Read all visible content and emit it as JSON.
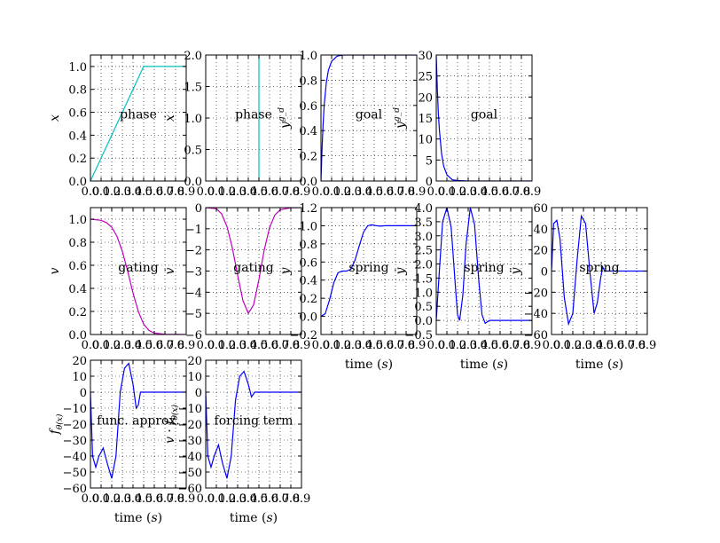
{
  "figure": {
    "width": 812,
    "height": 612
  },
  "chart_data": [
    {
      "id": "phase_x",
      "type": "line",
      "color": "#00bfbf",
      "xlim": [
        0,
        0.9
      ],
      "ylim": [
        0,
        1.1
      ],
      "x_ticks": [
        "0.0",
        "0.1",
        "0.2",
        "0.3",
        "0.4",
        "0.5",
        "0.6",
        "0.7",
        "0.8",
        "0.9"
      ],
      "y_ticks": [
        "0.0",
        "0.2",
        "0.4",
        "0.6",
        "0.8",
        "1.0"
      ],
      "y_values": [
        0,
        0.2,
        0.4,
        0.6,
        0.8,
        1.0
      ],
      "ylabel": "x",
      "xlabel": "",
      "annotation": "phase",
      "series": [
        {
          "x": [
            0,
            0.5,
            0.9
          ],
          "y": [
            0,
            1,
            1
          ]
        }
      ]
    },
    {
      "id": "phase_xd",
      "type": "line",
      "color": "#00bfbf",
      "xlim": [
        0,
        0.9
      ],
      "ylim": [
        0,
        2
      ],
      "x_ticks": [
        "0.0",
        "0.1",
        "0.2",
        "0.3",
        "0.4",
        "0.5",
        "0.6",
        "0.7",
        "0.8",
        "0.9"
      ],
      "y_ticks": [
        "0.0",
        "0.5",
        "1.0",
        "1.5",
        "2.0"
      ],
      "y_values": [
        0,
        0.5,
        1,
        1.5,
        2
      ],
      "ylabel": "ẋ",
      "xlabel": "",
      "annotation": "phase",
      "series": [
        {
          "x": [
            0.5,
            0.5
          ],
          "y": [
            0,
            2
          ]
        }
      ]
    },
    {
      "id": "goal_y",
      "type": "line",
      "color": "#0000ff",
      "xlim": [
        0,
        0.9
      ],
      "ylim": [
        0,
        1
      ],
      "x_ticks": [
        "0.0",
        "0.1",
        "0.2",
        "0.3",
        "0.4",
        "0.5",
        "0.6",
        "0.7",
        "0.8",
        "0.9"
      ],
      "y_ticks": [
        "0.0",
        "0.2",
        "0.4",
        "0.6",
        "0.8",
        "1.0"
      ],
      "y_values": [
        0,
        0.2,
        0.4,
        0.6,
        0.8,
        1.0
      ],
      "ylabel": "y^{g_d}",
      "xlabel": "",
      "annotation": "goal",
      "series": [
        {
          "x": [
            0,
            0.01,
            0.02,
            0.03,
            0.05,
            0.07,
            0.1,
            0.15,
            0.2,
            0.3,
            0.9
          ],
          "y": [
            0,
            0.26,
            0.45,
            0.6,
            0.78,
            0.88,
            0.95,
            0.99,
            1,
            1,
            1
          ]
        }
      ]
    },
    {
      "id": "goal_yd",
      "type": "line",
      "color": "#0000ff",
      "xlim": [
        0,
        0.9
      ],
      "ylim": [
        0,
        30
      ],
      "x_ticks": [
        "0.0",
        "0.1",
        "0.2",
        "0.3",
        "0.4",
        "0.5",
        "0.6",
        "0.7",
        "0.8",
        "0.9"
      ],
      "y_ticks": [
        "0",
        "5",
        "10",
        "15",
        "20",
        "25",
        "30"
      ],
      "y_values": [
        0,
        5,
        10,
        15,
        20,
        25,
        30
      ],
      "ylabel": "ẏ^{g_d}",
      "xlabel": "",
      "annotation": "goal",
      "series": [
        {
          "x": [
            0,
            0.01,
            0.02,
            0.03,
            0.05,
            0.07,
            0.1,
            0.15,
            0.2,
            0.3,
            0.9
          ],
          "y": [
            30,
            22,
            16,
            12,
            6.5,
            3.5,
            1.5,
            0.3,
            0.1,
            0,
            0
          ]
        }
      ]
    },
    {
      "id": "gating_v",
      "type": "line",
      "color": "#bf00bf",
      "xlim": [
        0,
        0.9
      ],
      "ylim": [
        0,
        1.1
      ],
      "x_ticks": [
        "0.0",
        "0.1",
        "0.2",
        "0.3",
        "0.4",
        "0.5",
        "0.6",
        "0.7",
        "0.8",
        "0.9"
      ],
      "y_ticks": [
        "0.0",
        "0.2",
        "0.4",
        "0.6",
        "0.8",
        "1.0"
      ],
      "y_values": [
        0,
        0.2,
        0.4,
        0.6,
        0.8,
        1.0
      ],
      "ylabel": "v",
      "xlabel": "",
      "annotation": "gating",
      "series": [
        {
          "x": [
            0,
            0.1,
            0.15,
            0.2,
            0.25,
            0.3,
            0.35,
            0.4,
            0.45,
            0.5,
            0.55,
            0.6,
            0.7,
            0.9
          ],
          "y": [
            1,
            0.99,
            0.97,
            0.93,
            0.85,
            0.72,
            0.55,
            0.36,
            0.2,
            0.09,
            0.035,
            0.012,
            0.002,
            0
          ]
        }
      ]
    },
    {
      "id": "gating_vd",
      "type": "line",
      "color": "#bf00bf",
      "xlim": [
        0,
        0.9
      ],
      "ylim": [
        -6,
        0
      ],
      "x_ticks": [
        "0.0",
        "0.1",
        "0.2",
        "0.3",
        "0.4",
        "0.5",
        "0.6",
        "0.7",
        "0.8",
        "0.9"
      ],
      "y_ticks": [
        "−6",
        "−5",
        "−4",
        "−3",
        "−2",
        "−1",
        "0"
      ],
      "y_values": [
        -6,
        -5,
        -4,
        -3,
        -2,
        -1,
        0
      ],
      "ylabel": "v̇",
      "xlabel": "",
      "annotation": "gating",
      "series": [
        {
          "x": [
            0,
            0.1,
            0.15,
            0.2,
            0.25,
            0.3,
            0.35,
            0.4,
            0.45,
            0.5,
            0.55,
            0.6,
            0.65,
            0.7,
            0.8,
            0.9
          ],
          "y": [
            0,
            -0.05,
            -0.3,
            -0.9,
            -1.9,
            -3.2,
            -4.4,
            -5,
            -4.6,
            -3.4,
            -2,
            -0.95,
            -0.35,
            -0.1,
            -0.01,
            0
          ]
        }
      ]
    },
    {
      "id": "spring_y",
      "type": "line",
      "color": "#0000ff",
      "xlim": [
        0,
        0.9
      ],
      "ylim": [
        -0.2,
        1.2
      ],
      "x_ticks": [
        "0.0",
        "0.1",
        "0.2",
        "0.3",
        "0.4",
        "0.5",
        "0.6",
        "0.7",
        "0.8",
        "0.9"
      ],
      "y_ticks": [
        "−0.2",
        "0.0",
        "0.2",
        "0.4",
        "0.6",
        "0.8",
        "1.0",
        "1.2"
      ],
      "y_values": [
        -0.2,
        0,
        0.2,
        0.4,
        0.6,
        0.8,
        1,
        1.2
      ],
      "ylabel": "y",
      "xlabel": "time (s)",
      "annotation": "spring",
      "series": [
        {
          "x": [
            0,
            0.04,
            0.08,
            0.12,
            0.16,
            0.2,
            0.24,
            0.28,
            0.32,
            0.36,
            0.4,
            0.44,
            0.48,
            0.52,
            0.56,
            0.6,
            0.7,
            0.8,
            0.9
          ],
          "y": [
            0,
            0.03,
            0.18,
            0.37,
            0.48,
            0.5,
            0.5,
            0.52,
            0.62,
            0.78,
            0.93,
            1.0,
            1.01,
            1.0,
            0.995,
            1.0,
            1,
            1,
            1
          ]
        }
      ]
    },
    {
      "id": "spring_yd",
      "type": "line",
      "color": "#0000ff",
      "xlim": [
        0,
        0.9
      ],
      "ylim": [
        -0.5,
        4
      ],
      "x_ticks": [
        "0.0",
        "0.1",
        "0.2",
        "0.3",
        "0.4",
        "0.5",
        "0.6",
        "0.7",
        "0.8",
        "0.9"
      ],
      "y_ticks": [
        "−0.5",
        "0.0",
        "0.5",
        "1.0",
        "1.5",
        "2.0",
        "2.5",
        "3.0",
        "3.5",
        "4.0"
      ],
      "y_values": [
        -0.5,
        0,
        0.5,
        1,
        1.5,
        2,
        2.5,
        3,
        3.5,
        4
      ],
      "ylabel": "ẏ",
      "xlabel": "time (s)",
      "annotation": "spring",
      "series": [
        {
          "x": [
            0,
            0.03,
            0.06,
            0.1,
            0.14,
            0.18,
            0.2,
            0.22,
            0.25,
            0.28,
            0.32,
            0.36,
            0.4,
            0.43,
            0.46,
            0.48,
            0.5,
            0.55,
            0.6,
            0.7,
            0.9
          ],
          "y": [
            0,
            1.8,
            3.5,
            4,
            3.3,
            1.2,
            0.2,
            0,
            0.9,
            2.7,
            4,
            3.4,
            1.4,
            0.2,
            -0.1,
            -0.05,
            0,
            0,
            0,
            0,
            0
          ]
        }
      ]
    },
    {
      "id": "spring_ydd",
      "type": "line",
      "color": "#0000ff",
      "xlim": [
        0,
        0.9
      ],
      "ylim": [
        -60,
        60
      ],
      "x_ticks": [
        "0.0",
        "0.1",
        "0.2",
        "0.3",
        "0.4",
        "0.5",
        "0.6",
        "0.7",
        "0.8",
        "0.9"
      ],
      "y_ticks": [
        "−60",
        "−40",
        "−20",
        "0",
        "20",
        "40",
        "60"
      ],
      "y_values": [
        -60,
        -40,
        -20,
        0,
        20,
        40,
        60
      ],
      "ylabel": "ÿ",
      "xlabel": "time (s)",
      "annotation": "spring",
      "series": [
        {
          "x": [
            0,
            0.02,
            0.05,
            0.08,
            0.12,
            0.16,
            0.2,
            0.24,
            0.28,
            0.32,
            0.36,
            0.4,
            0.43,
            0.46,
            0.48,
            0.5,
            0.55,
            0.6,
            0.9
          ],
          "y": [
            0,
            45,
            48,
            30,
            -25,
            -50,
            -40,
            10,
            52,
            45,
            0,
            -40,
            -30,
            -8,
            4,
            0,
            0,
            0,
            0
          ]
        }
      ]
    },
    {
      "id": "func_approx",
      "type": "line",
      "color": "#0000ff",
      "xlim": [
        0,
        0.9
      ],
      "ylim": [
        -60,
        20
      ],
      "x_ticks": [
        "0.0",
        "0.1",
        "0.2",
        "0.3",
        "0.4",
        "0.5",
        "0.6",
        "0.7",
        "0.8",
        "0.9"
      ],
      "y_ticks": [
        "−60",
        "−50",
        "−40",
        "−30",
        "−20",
        "−10",
        "0",
        "10",
        "20"
      ],
      "y_values": [
        -60,
        -50,
        -40,
        -30,
        -20,
        -10,
        0,
        10,
        20
      ],
      "ylabel": "f_θ(x)",
      "xlabel": "time (s)",
      "annotation": "func. approx.",
      "series": [
        {
          "x": [
            0,
            0.02,
            0.05,
            0.08,
            0.12,
            0.16,
            0.2,
            0.24,
            0.28,
            0.32,
            0.36,
            0.4,
            0.43,
            0.45,
            0.47,
            0.5,
            0.6,
            0.9
          ],
          "y": [
            0,
            -40,
            -47,
            -40,
            -35,
            -45,
            -54,
            -40,
            0,
            15,
            18,
            5,
            -10,
            -8,
            0,
            0,
            0,
            0
          ]
        }
      ]
    },
    {
      "id": "forcing_term",
      "type": "line",
      "color": "#0000ff",
      "xlim": [
        0,
        0.9
      ],
      "ylim": [
        -60,
        20
      ],
      "x_ticks": [
        "0.0",
        "0.1",
        "0.2",
        "0.3",
        "0.4",
        "0.5",
        "0.6",
        "0.7",
        "0.8",
        "0.9"
      ],
      "y_ticks": [
        "−60",
        "−50",
        "−40",
        "−30",
        "−20",
        "−10",
        "0",
        "10",
        "20"
      ],
      "y_values": [
        -60,
        -50,
        -40,
        -30,
        -20,
        -10,
        0,
        10,
        20
      ],
      "ylabel": "v · f_θ(x)",
      "xlabel": "time (s)",
      "annotation": "forcing term",
      "series": [
        {
          "x": [
            0,
            0.02,
            0.05,
            0.08,
            0.12,
            0.16,
            0.2,
            0.24,
            0.28,
            0.32,
            0.36,
            0.4,
            0.43,
            0.46,
            0.5,
            0.6,
            0.9
          ],
          "y": [
            0,
            -40,
            -47,
            -40,
            -33,
            -45,
            -54,
            -40,
            -5,
            10,
            13,
            5,
            -3,
            0,
            0,
            0,
            0
          ]
        }
      ]
    }
  ]
}
